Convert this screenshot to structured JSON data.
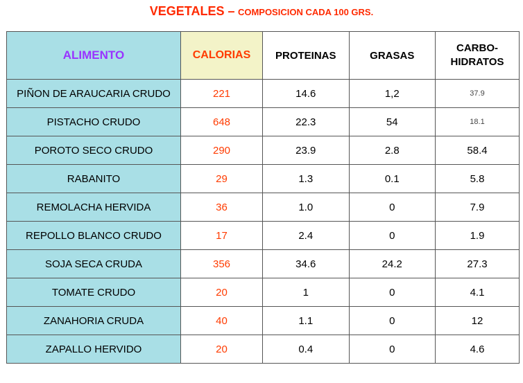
{
  "title": {
    "main": "VEGETALES –",
    "sub": "COMPOSICION CADA 100 GRS."
  },
  "columns": {
    "food": "ALIMENTO",
    "calories": "CALORIAS",
    "protein": "PROTEINAS",
    "fat": "GRASAS",
    "carbs_line1": "CARBO-",
    "carbs_line2": "HIDRATOS"
  },
  "rows": [
    {
      "food": "PIÑON DE ARAUCARIA CRUDO",
      "calories": "221",
      "protein": "14.6",
      "fat": "1,2",
      "carbs": "37.9"
    },
    {
      "food": "PISTACHO CRUDO",
      "calories": "648",
      "protein": "22.3",
      "fat": "54",
      "carbs": "18.1"
    },
    {
      "food": "POROTO SECO CRUDO",
      "calories": "290",
      "protein": "23.9",
      "fat": "2.8",
      "carbs": "58.4"
    },
    {
      "food": "RABANITO",
      "calories": "29",
      "protein": "1.3",
      "fat": "0.1",
      "carbs": "5.8"
    },
    {
      "food": "REMOLACHA HERVIDA",
      "calories": "36",
      "protein": "1.0",
      "fat": "0",
      "carbs": "7.9"
    },
    {
      "food": "REPOLLO BLANCO CRUDO",
      "calories": "17",
      "protein": "2.4",
      "fat": "0",
      "carbs": "1.9"
    },
    {
      "food": "SOJA SECA CRUDA",
      "calories": "356",
      "protein": "34.6",
      "fat": "24.2",
      "carbs": "27.3"
    },
    {
      "food": "TOMATE CRUDO",
      "calories": "20",
      "protein": "1",
      "fat": "0",
      "carbs": "4.1"
    },
    {
      "food": "ZANAHORIA CRUDA",
      "calories": "40",
      "protein": "1.1",
      "fat": "0",
      "carbs": "12"
    },
    {
      "food": "ZAPALLO HERVIDO",
      "calories": "20",
      "protein": "0.4",
      "fat": "0",
      "carbs": "4.6"
    }
  ],
  "colors": {
    "title": "#ff2a00",
    "food_column_bg": "#a9dfe6",
    "calories_header_bg": "#f3f3c8",
    "calories_text": "#ff3b00",
    "food_header_text": "#9933ff"
  }
}
